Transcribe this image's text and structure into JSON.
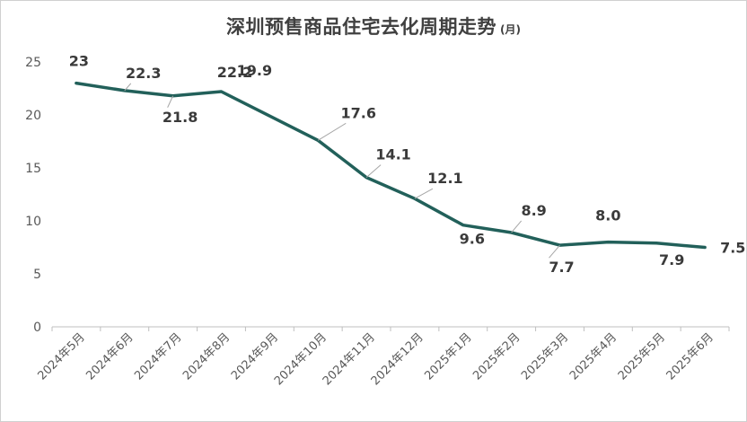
{
  "chart_data": {
    "type": "line",
    "title": "深圳预售商品住宅去化周期走势",
    "subtitle": "(月)",
    "xlabel": "",
    "ylabel": "",
    "ylim": [
      0,
      25
    ],
    "yticks": [
      0,
      5,
      10,
      15,
      20,
      25
    ],
    "grid": "horizontal",
    "legend": "none",
    "categories": [
      "2024年5月",
      "2024年6月",
      "2024年7月",
      "2024年8月",
      "2024年9月",
      "2024年10月",
      "2024年11月",
      "2024年12月",
      "2025年1月",
      "2025年2月",
      "2025年3月",
      "2025年4月",
      "2025年5月",
      "2025年6月"
    ],
    "series": [
      {
        "color": "#22605a",
        "values": [
          23,
          22.3,
          21.8,
          22.2,
          19.9,
          17.6,
          14.1,
          12.1,
          9.6,
          8.9,
          7.7,
          8.0,
          7.9,
          7.5
        ],
        "data_labels": [
          "23",
          "22.3",
          "21.8",
          "22.2",
          "19.9",
          "17.6",
          "14.1",
          "12.1",
          "9.6",
          "8.9",
          "7.7",
          "8.0",
          "7.9",
          "7.5"
        ]
      }
    ]
  }
}
